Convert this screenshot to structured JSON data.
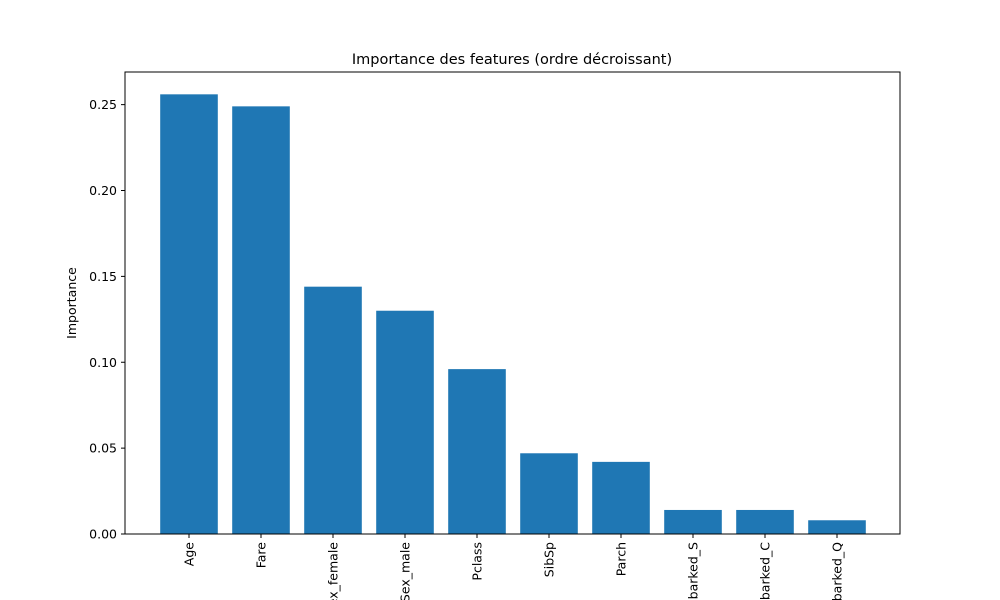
{
  "chart_data": {
    "type": "bar",
    "title": "Importance des features (ordre décroissant)",
    "xlabel": "",
    "ylabel": "Importance",
    "categories": [
      "Age",
      "Fare",
      "Sex_female",
      "Sex_male",
      "Pclass",
      "SibSp",
      "Parch",
      "Embarked_S",
      "Embarked_C",
      "Embarked_Q"
    ],
    "values": [
      0.256,
      0.249,
      0.144,
      0.13,
      0.096,
      0.047,
      0.042,
      0.014,
      0.014,
      0.008
    ],
    "ylim": [
      0,
      0.269
    ],
    "yticks": [
      0.0,
      0.05,
      0.1,
      0.15,
      0.2,
      0.25
    ],
    "ytick_labels": [
      "0.00",
      "0.05",
      "0.10",
      "0.15",
      "0.20",
      "0.25"
    ],
    "bar_color": "#1f77b4",
    "grid": false,
    "legend": "none"
  }
}
